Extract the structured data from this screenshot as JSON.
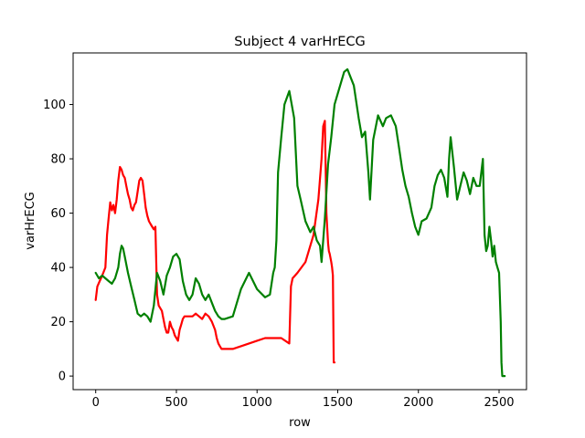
{
  "chart_data": {
    "type": "line",
    "title": "Subject 4 varHrECG",
    "xlabel": "row",
    "ylabel": "varHrECG",
    "xlim": [
      -140,
      2670
    ],
    "ylim": [
      -5,
      119
    ],
    "xticks": [
      0,
      500,
      1000,
      1500,
      2000,
      2500
    ],
    "yticks": [
      0,
      20,
      40,
      60,
      80,
      100
    ],
    "grid": false,
    "legend": "none",
    "series": [
      {
        "color": "#ff0000",
        "x": [
          0,
          10,
          25,
          40,
          60,
          70,
          80,
          90,
          100,
          110,
          120,
          130,
          140,
          150,
          160,
          170,
          180,
          190,
          200,
          210,
          220,
          230,
          240,
          250,
          260,
          270,
          280,
          290,
          300,
          310,
          320,
          330,
          340,
          350,
          360,
          370,
          380,
          390,
          400,
          410,
          420,
          430,
          440,
          450,
          460,
          470,
          480,
          490,
          500,
          510,
          520,
          530,
          540,
          550,
          560,
          580,
          600,
          620,
          640,
          660,
          680,
          700,
          720,
          740,
          750,
          760,
          770,
          780,
          790,
          800,
          850,
          900,
          950,
          1000,
          1050,
          1100,
          1150,
          1200,
          1210,
          1220,
          1250,
          1300,
          1350,
          1380,
          1400,
          1410,
          1420,
          1430,
          1440,
          1445,
          1450,
          1460,
          1465,
          1470,
          1475,
          1480
        ],
        "values": [
          28,
          33,
          35,
          37,
          40,
          52,
          58,
          64,
          61,
          63,
          60,
          65,
          72,
          77,
          76,
          74,
          73,
          70,
          67,
          65,
          62,
          61,
          63,
          64,
          68,
          72,
          73,
          72,
          67,
          62,
          59,
          57,
          56,
          55,
          54,
          55,
          30,
          26,
          25,
          24,
          21,
          18,
          16,
          16,
          20,
          18,
          17,
          15,
          14,
          13,
          17,
          19,
          21,
          22,
          22,
          22,
          22,
          23,
          22,
          21,
          23,
          22,
          20,
          17,
          14,
          12,
          11,
          10,
          10,
          10,
          10,
          11,
          12,
          13,
          14,
          14,
          14,
          12,
          33,
          36,
          38,
          42,
          52,
          65,
          80,
          92,
          94,
          60,
          49,
          46,
          45,
          42,
          40,
          37,
          5,
          5
        ]
      },
      {
        "color": "#008000",
        "x": [
          0,
          20,
          40,
          60,
          80,
          100,
          120,
          140,
          150,
          160,
          170,
          180,
          200,
          220,
          240,
          260,
          280,
          300,
          320,
          340,
          360,
          380,
          400,
          420,
          440,
          460,
          480,
          500,
          520,
          540,
          560,
          580,
          600,
          620,
          640,
          660,
          680,
          700,
          720,
          740,
          760,
          780,
          800,
          850,
          900,
          950,
          1000,
          1050,
          1080,
          1100,
          1110,
          1120,
          1130,
          1150,
          1170,
          1200,
          1230,
          1250,
          1270,
          1300,
          1330,
          1350,
          1370,
          1390,
          1400,
          1420,
          1440,
          1460,
          1480,
          1500,
          1520,
          1540,
          1560,
          1580,
          1600,
          1630,
          1650,
          1670,
          1690,
          1700,
          1720,
          1750,
          1780,
          1800,
          1830,
          1860,
          1880,
          1900,
          1920,
          1940,
          1960,
          1980,
          2000,
          2020,
          2050,
          2080,
          2100,
          2120,
          2140,
          2160,
          2180,
          2190,
          2200,
          2220,
          2240,
          2260,
          2280,
          2300,
          2320,
          2340,
          2360,
          2380,
          2400,
          2410,
          2420,
          2430,
          2440,
          2450,
          2460,
          2470,
          2480,
          2490,
          2500,
          2510,
          2515,
          2520,
          2530,
          2535
        ],
        "values": [
          38,
          36,
          37,
          36,
          35,
          34,
          36,
          40,
          45,
          48,
          47,
          44,
          38,
          33,
          28,
          23,
          22,
          23,
          22,
          20,
          26,
          38,
          35,
          30,
          37,
          40,
          44,
          45,
          43,
          35,
          30,
          28,
          30,
          36,
          34,
          30,
          28,
          30,
          27,
          24,
          22,
          21,
          21,
          22,
          32,
          38,
          32,
          29,
          30,
          38,
          40,
          50,
          75,
          88,
          100,
          105,
          95,
          70,
          65,
          57,
          53,
          55,
          50,
          48,
          42,
          58,
          78,
          88,
          100,
          104,
          108,
          112,
          113,
          110,
          107,
          95,
          88,
          90,
          75,
          65,
          87,
          96,
          92,
          95,
          96,
          92,
          84,
          76,
          70,
          66,
          60,
          55,
          52,
          57,
          58,
          62,
          70,
          74,
          76,
          73,
          66,
          80,
          88,
          77,
          65,
          70,
          75,
          72,
          67,
          73,
          70,
          70,
          80,
          52,
          46,
          48,
          55,
          50,
          44,
          48,
          42,
          40,
          38,
          20,
          5,
          0,
          0,
          0
        ]
      }
    ]
  }
}
